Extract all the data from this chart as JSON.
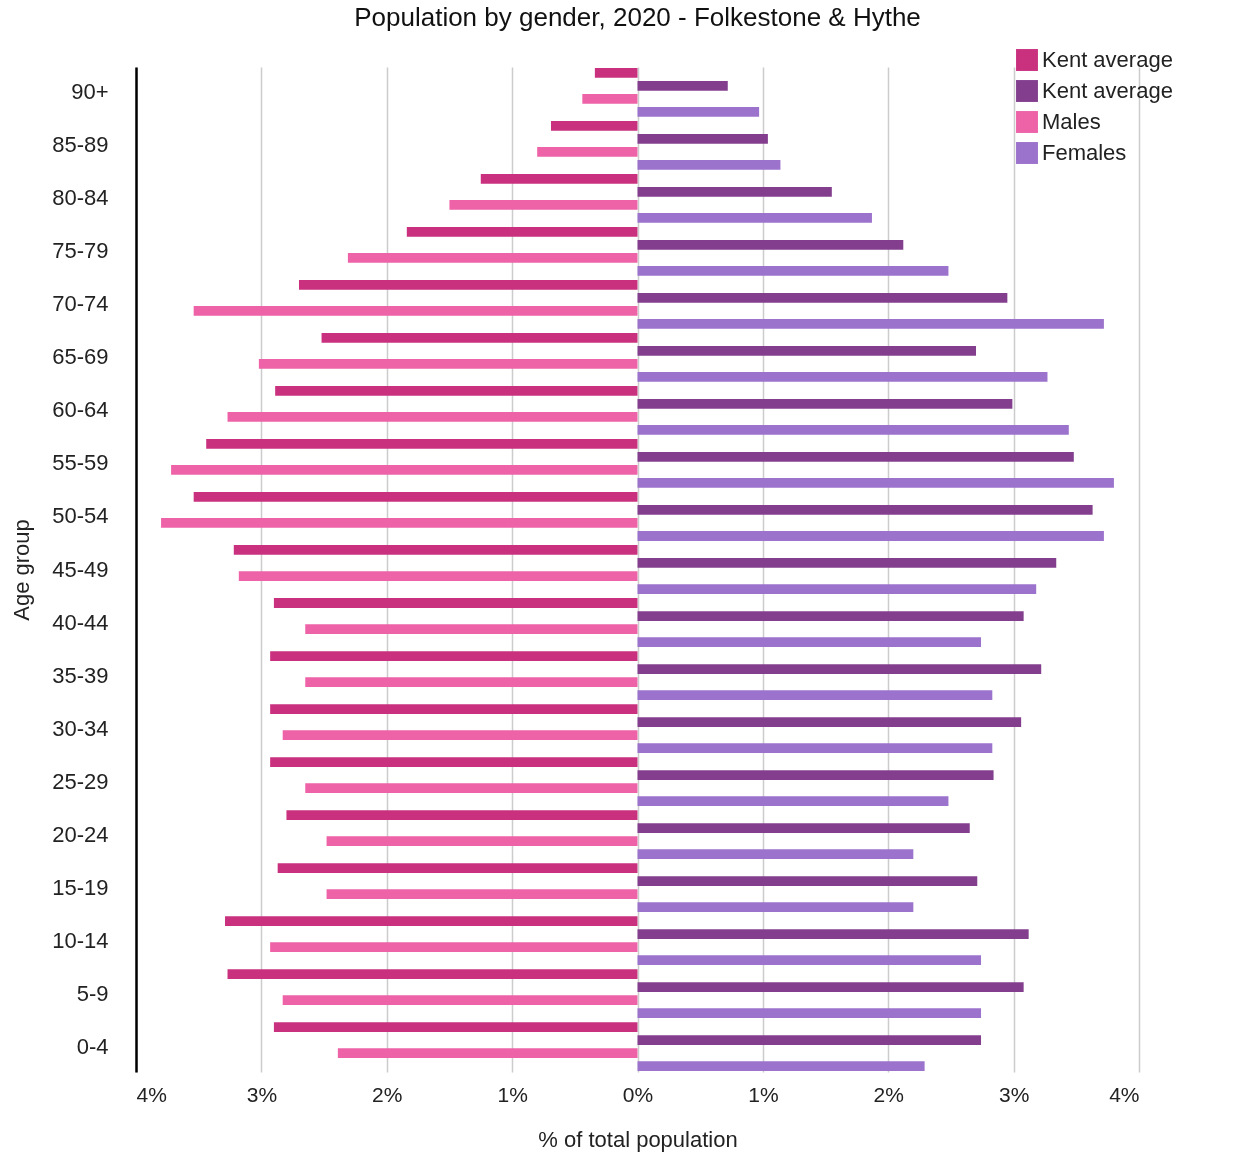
{
  "chart_data": {
    "type": "bar",
    "orientation": "horizontal",
    "title": "Population by gender, 2020 - Folkestone & Hythe",
    "xlabel": "% of total population",
    "ylabel": "Age group",
    "categories": [
      "90+",
      "85-89",
      "80-84",
      "75-79",
      "70-74",
      "65-69",
      "60-64",
      "55-59",
      "50-54",
      "45-49",
      "40-44",
      "35-39",
      "30-34",
      "25-29",
      "20-24",
      "15-19",
      "10-14",
      "5-9",
      "0-4"
    ],
    "series": [
      {
        "name": "Kent average",
        "color": "#c9317f",
        "values": [
          -0.34,
          -0.69,
          -1.25,
          -1.84,
          -2.7,
          -2.52,
          -2.89,
          -3.44,
          -3.54,
          -3.22,
          -2.9,
          -2.93,
          -2.93,
          -2.93,
          -2.8,
          -2.87,
          -3.29,
          -3.27,
          -2.9
        ]
      },
      {
        "name": "Kent average",
        "color": "#833f8e",
        "values": [
          0.72,
          1.04,
          1.55,
          2.12,
          2.95,
          2.7,
          2.99,
          3.48,
          3.63,
          3.34,
          3.08,
          3.22,
          3.06,
          2.84,
          2.65,
          2.71,
          3.12,
          3.08,
          2.74
        ]
      },
      {
        "name": "Males",
        "color": "#ee62a7",
        "values": [
          -0.44,
          -0.8,
          -1.5,
          -2.31,
          -3.54,
          -3.02,
          -3.27,
          -3.72,
          -3.8,
          -3.18,
          -2.65,
          -2.65,
          -2.83,
          -2.65,
          -2.48,
          -2.48,
          -2.93,
          -2.83,
          -2.39
        ]
      },
      {
        "name": "Females",
        "color": "#9b72cc",
        "values": [
          0.97,
          1.14,
          1.87,
          2.48,
          3.72,
          3.27,
          3.44,
          3.8,
          3.72,
          3.18,
          2.74,
          2.83,
          2.83,
          2.48,
          2.2,
          2.2,
          2.74,
          2.74,
          2.29
        ]
      }
    ],
    "xlim": [
      -4,
      4
    ],
    "xticks": [
      {
        "value": -4,
        "label": "4%"
      },
      {
        "value": -3,
        "label": "3%"
      },
      {
        "value": -2,
        "label": "2%"
      },
      {
        "value": -1,
        "label": "1%"
      },
      {
        "value": 0,
        "label": "0%"
      },
      {
        "value": 1,
        "label": "1%"
      },
      {
        "value": 2,
        "label": "2%"
      },
      {
        "value": 3,
        "label": "3%"
      },
      {
        "value": 4,
        "label": "4%"
      }
    ],
    "grid": "x",
    "legend": "top right"
  }
}
